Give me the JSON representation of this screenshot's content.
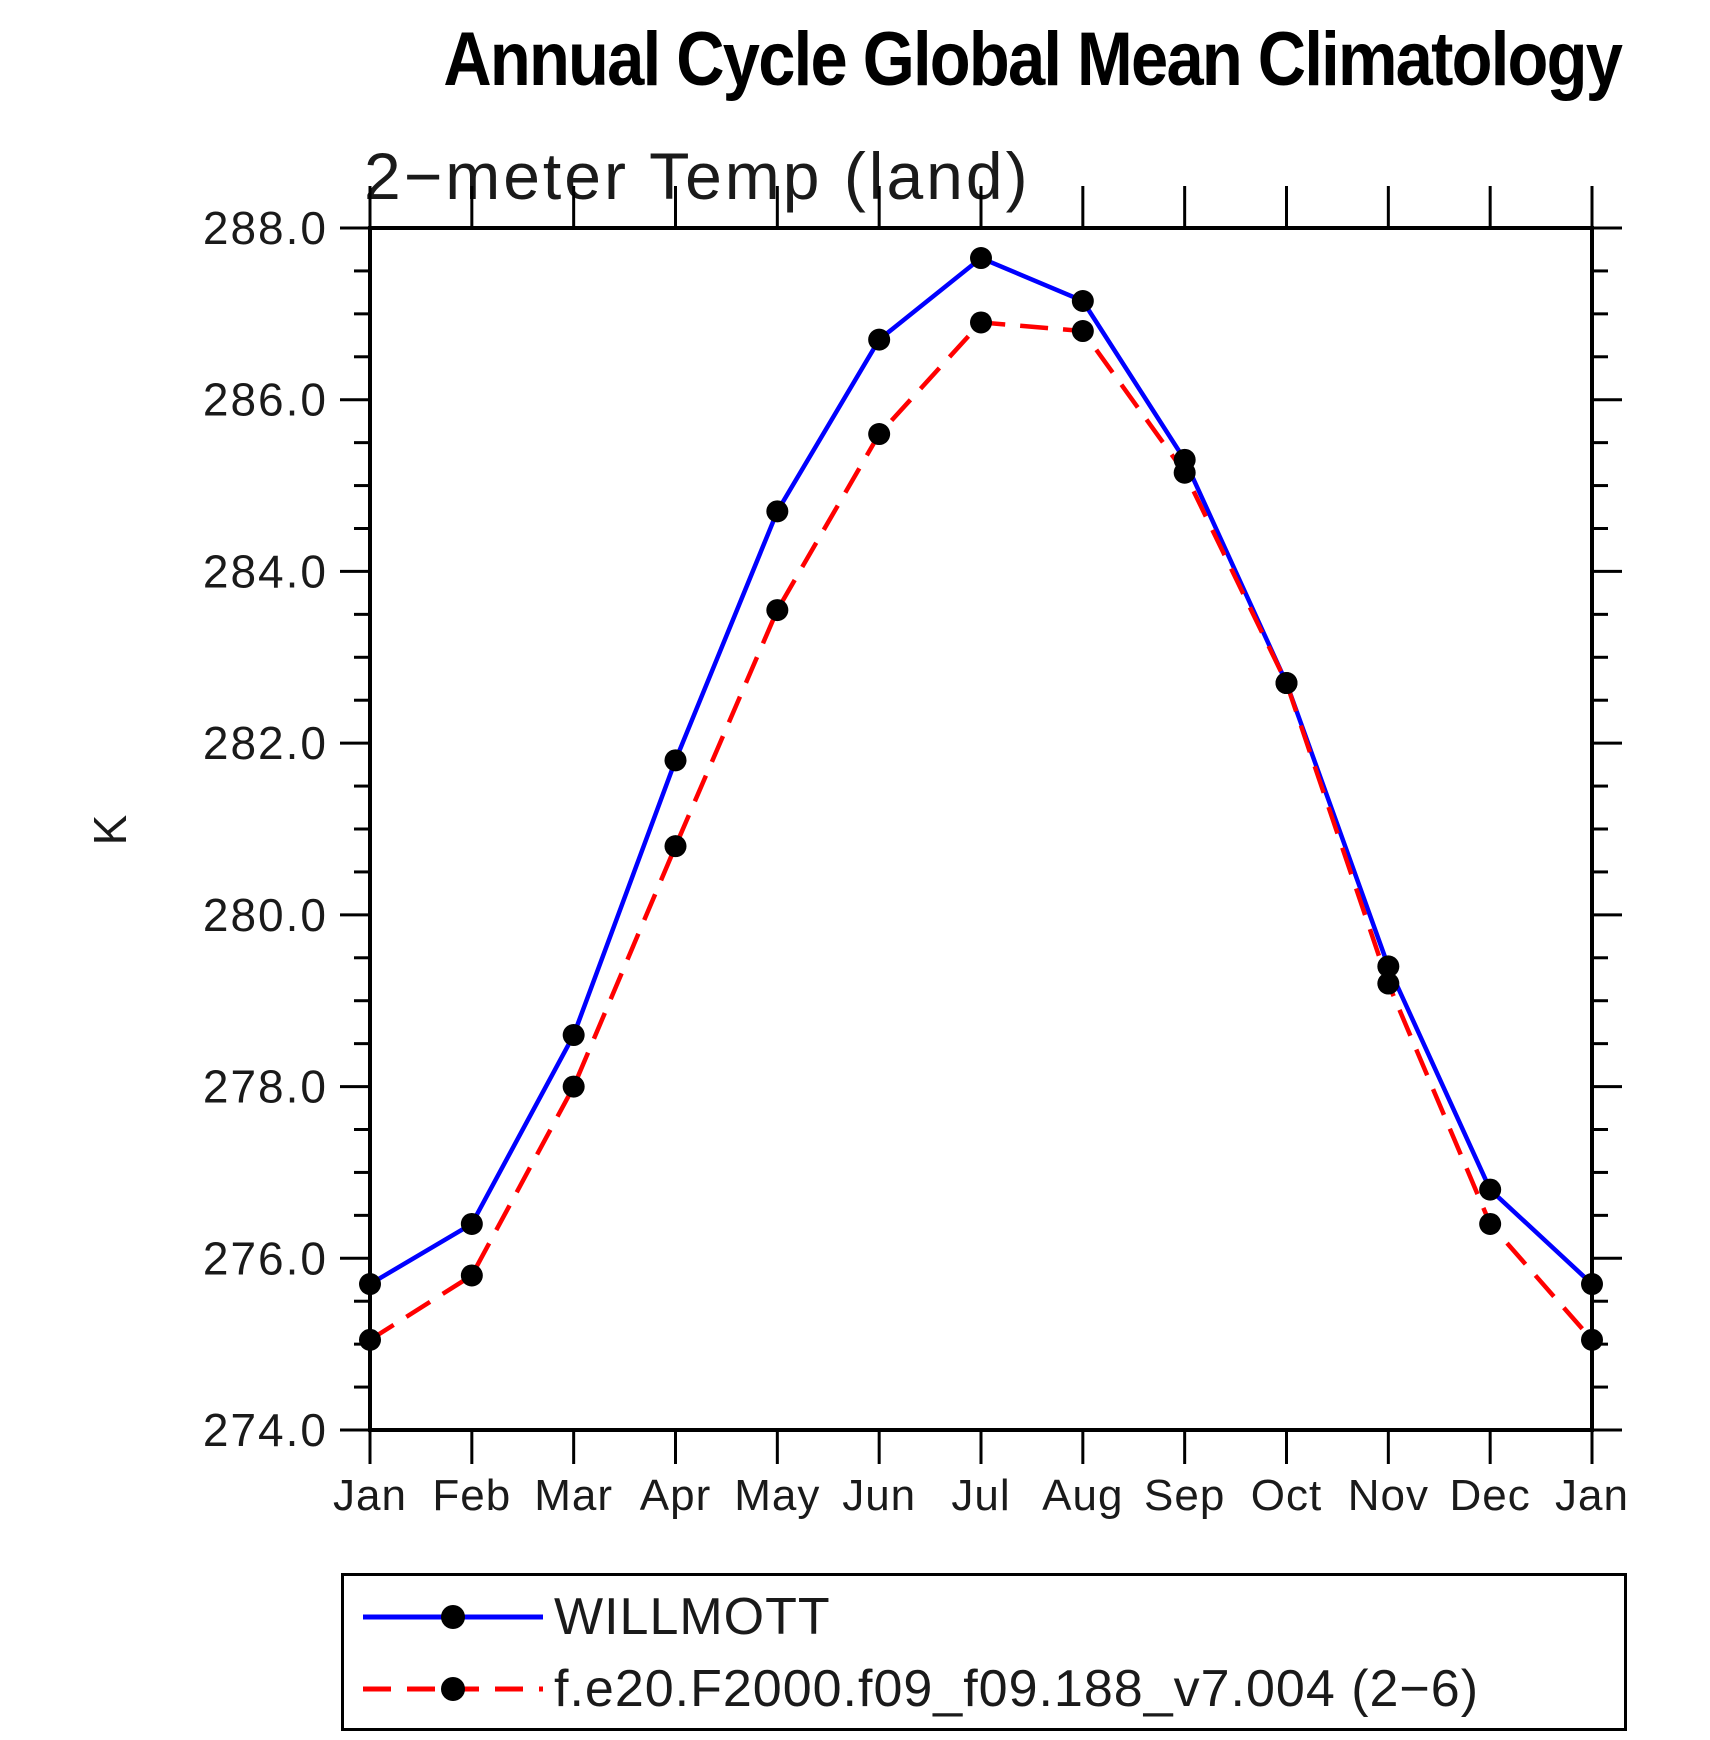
{
  "header": {
    "title": "Annual Cycle Global Mean Climatology",
    "subtitle": "2−meter Temp (land)"
  },
  "axes": {
    "y_label": "K",
    "y_tick_labels": [
      "288.0",
      "286.0",
      "284.0",
      "282.0",
      "280.0",
      "278.0",
      "276.0",
      "274.0"
    ],
    "x_tick_labels": [
      "Jan",
      "Feb",
      "Mar",
      "Apr",
      "May",
      "Jun",
      "Jul",
      "Aug",
      "Sep",
      "Oct",
      "Nov",
      "Dec",
      "Jan"
    ]
  },
  "legend": {
    "entries": [
      {
        "label": "WILLMOTT",
        "color": "#0000ff",
        "style": "solid",
        "marker": "black-filled-circle"
      },
      {
        "label": "f.e20.F2000.f09_f09.188_v7.004 (2−6)",
        "color": "#ff0000",
        "style": "dashed",
        "marker": "black-filled-circle"
      }
    ]
  },
  "colors": {
    "series1": "#0000ff",
    "series2": "#ff0000",
    "marker": "#000000",
    "axis": "#000000",
    "text": "#1a1a1a"
  },
  "chart_data": {
    "type": "line",
    "title": "Annual Cycle Global Mean Climatology",
    "subtitle": "2−meter Temp (land)",
    "xlabel": "",
    "ylabel": "K",
    "categories": [
      "Jan",
      "Feb",
      "Mar",
      "Apr",
      "May",
      "Jun",
      "Jul",
      "Aug",
      "Sep",
      "Oct",
      "Nov",
      "Dec",
      "Jan"
    ],
    "series": [
      {
        "name": "WILLMOTT",
        "color": "#0000ff",
        "line_style": "solid",
        "marker": "filled-circle",
        "marker_color": "#000000",
        "values": [
          275.7,
          276.4,
          278.6,
          281.8,
          284.7,
          286.7,
          287.65,
          287.15,
          285.3,
          282.7,
          279.4,
          276.8,
          275.7
        ]
      },
      {
        "name": "f.e20.F2000.f09_f09.188_v7.004 (2−6)",
        "color": "#ff0000",
        "line_style": "dashed",
        "marker": "filled-circle",
        "marker_color": "#000000",
        "values": [
          275.05,
          275.8,
          278.0,
          280.8,
          283.55,
          285.6,
          286.9,
          286.8,
          285.15,
          282.7,
          279.2,
          276.4,
          275.05
        ]
      }
    ],
    "ylim": [
      274.0,
      288.0
    ],
    "y_major_step": 2.0,
    "y_minor_step": 0.5,
    "grid": false,
    "legend_position": "bottom"
  }
}
